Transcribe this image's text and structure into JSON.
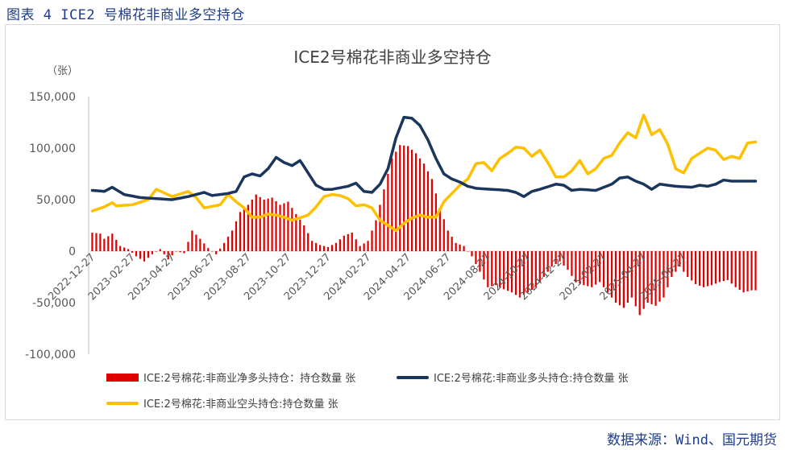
{
  "caption": "图表 4 ICE2 号棉花非商业多空持仓",
  "source": "数据来源：Wind、国元期货",
  "chart_data": {
    "type": "bar+line",
    "title": "ICE2号棉花非商业多空持仓",
    "unit_label": "（张）",
    "y_ticks": [
      "150,000",
      "100,000",
      "50,000",
      "0",
      "-50,000",
      "-100,000"
    ],
    "y_tick_values": [
      150000,
      100000,
      50000,
      0,
      -50000,
      -100000
    ],
    "ylim": [
      -100000,
      150000
    ],
    "x_tick_labels": [
      "2022-12-27",
      "2023-02-27",
      "2023-04-27",
      "2023-06-27",
      "2023-08-27",
      "2023-10-27",
      "2023-12-27",
      "2024-02-27",
      "2024-04-27",
      "2024-06-27",
      "2024-08-27",
      "2024-10-27",
      "2024-12-27",
      "2025-02-27",
      "2025-04-27",
      "2025-06-27"
    ],
    "colors": {
      "net": "#e00000",
      "long": "#1b365d",
      "short": "#ffc000"
    },
    "legend": [
      {
        "key": "net",
        "label": "ICE:2号棉花:非商业净多头持仓：持仓数量 张"
      },
      {
        "key": "long",
        "label": "ICE:2号棉花:非商业多头持仓:持仓数量 张"
      },
      {
        "key": "short",
        "label": "ICE:2号棉花:非商业空头持仓:持仓数量 张"
      }
    ],
    "long_anchors": [
      [
        0,
        59000
      ],
      [
        3,
        58000
      ],
      [
        5,
        62000
      ],
      [
        8,
        55000
      ],
      [
        12,
        52000
      ],
      [
        16,
        51000
      ],
      [
        20,
        50000
      ],
      [
        24,
        53000
      ],
      [
        28,
        57000
      ],
      [
        30,
        54000
      ],
      [
        34,
        56000
      ],
      [
        36,
        58000
      ],
      [
        38,
        72000
      ],
      [
        40,
        75000
      ],
      [
        42,
        73000
      ],
      [
        44,
        80000
      ],
      [
        46,
        91000
      ],
      [
        48,
        86000
      ],
      [
        50,
        83000
      ],
      [
        52,
        88000
      ],
      [
        54,
        76000
      ],
      [
        56,
        64000
      ],
      [
        58,
        60000
      ],
      [
        60,
        60000
      ],
      [
        64,
        63000
      ],
      [
        66,
        66000
      ],
      [
        68,
        58000
      ],
      [
        70,
        57000
      ],
      [
        72,
        65000
      ],
      [
        74,
        80000
      ],
      [
        76,
        110000
      ],
      [
        78,
        130000
      ],
      [
        80,
        129000
      ],
      [
        82,
        122000
      ],
      [
        84,
        108000
      ],
      [
        86,
        90000
      ],
      [
        88,
        75000
      ],
      [
        90,
        70000
      ],
      [
        92,
        67000
      ],
      [
        94,
        63000
      ],
      [
        96,
        61000
      ],
      [
        100,
        60000
      ],
      [
        104,
        59000
      ],
      [
        106,
        57000
      ],
      [
        108,
        53000
      ],
      [
        110,
        58000
      ],
      [
        112,
        60000
      ],
      [
        116,
        65000
      ],
      [
        118,
        64000
      ],
      [
        120,
        59000
      ],
      [
        122,
        60000
      ],
      [
        126,
        59000
      ],
      [
        130,
        65000
      ],
      [
        132,
        71000
      ],
      [
        134,
        72000
      ],
      [
        136,
        68000
      ],
      [
        138,
        65000
      ],
      [
        140,
        60000
      ],
      [
        142,
        65000
      ],
      [
        144,
        64000
      ],
      [
        146,
        63000
      ],
      [
        150,
        62000
      ],
      [
        152,
        64000
      ],
      [
        154,
        63000
      ],
      [
        156,
        65000
      ],
      [
        158,
        69000
      ],
      [
        160,
        68000
      ]
    ],
    "short_anchors": [
      [
        0,
        39000
      ],
      [
        3,
        43000
      ],
      [
        5,
        47000
      ],
      [
        6,
        44000
      ],
      [
        10,
        45000
      ],
      [
        14,
        50000
      ],
      [
        16,
        60000
      ],
      [
        20,
        53000
      ],
      [
        24,
        58000
      ],
      [
        26,
        52000
      ],
      [
        28,
        42000
      ],
      [
        32,
        45000
      ],
      [
        34,
        55000
      ],
      [
        36,
        48000
      ],
      [
        38,
        42000
      ],
      [
        40,
        33000
      ],
      [
        42,
        33000
      ],
      [
        44,
        36000
      ],
      [
        46,
        35000
      ],
      [
        48,
        33000
      ],
      [
        50,
        30000
      ],
      [
        54,
        35000
      ],
      [
        56,
        43000
      ],
      [
        58,
        53000
      ],
      [
        60,
        55000
      ],
      [
        62,
        54000
      ],
      [
        64,
        51000
      ],
      [
        66,
        44000
      ],
      [
        68,
        45000
      ],
      [
        70,
        42000
      ],
      [
        72,
        30000
      ],
      [
        74,
        25000
      ],
      [
        76,
        20000
      ],
      [
        78,
        27000
      ],
      [
        80,
        32000
      ],
      [
        82,
        35000
      ],
      [
        84,
        33000
      ],
      [
        86,
        33000
      ],
      [
        88,
        48000
      ],
      [
        90,
        56000
      ],
      [
        92,
        64000
      ],
      [
        94,
        70000
      ],
      [
        96,
        85000
      ],
      [
        98,
        86000
      ],
      [
        100,
        78000
      ],
      [
        102,
        90000
      ],
      [
        104,
        95000
      ],
      [
        106,
        101000
      ],
      [
        108,
        100000
      ],
      [
        110,
        92000
      ],
      [
        112,
        98000
      ],
      [
        114,
        86000
      ],
      [
        116,
        72000
      ],
      [
        118,
        72000
      ],
      [
        120,
        78000
      ],
      [
        122,
        88000
      ],
      [
        124,
        75000
      ],
      [
        126,
        80000
      ],
      [
        128,
        90000
      ],
      [
        130,
        93000
      ],
      [
        132,
        105000
      ],
      [
        134,
        115000
      ],
      [
        136,
        110000
      ],
      [
        138,
        132000
      ],
      [
        140,
        113000
      ],
      [
        142,
        118000
      ],
      [
        144,
        104000
      ],
      [
        146,
        80000
      ],
      [
        148,
        76000
      ],
      [
        150,
        90000
      ],
      [
        152,
        95000
      ],
      [
        154,
        100000
      ],
      [
        156,
        98000
      ],
      [
        158,
        89000
      ],
      [
        160,
        92000
      ],
      [
        162,
        90000
      ],
      [
        164,
        105000
      ],
      [
        166,
        106000
      ]
    ],
    "net_anchors": [
      [
        0,
        18000
      ],
      [
        2,
        17000
      ],
      [
        3,
        12000
      ],
      [
        5,
        17000
      ],
      [
        7,
        5000
      ],
      [
        9,
        2000
      ],
      [
        11,
        -5000
      ],
      [
        13,
        -10000
      ],
      [
        15,
        -3000
      ],
      [
        17,
        2000
      ],
      [
        19,
        -8000
      ],
      [
        21,
        0
      ],
      [
        23,
        -2000
      ],
      [
        25,
        20000
      ],
      [
        27,
        12000
      ],
      [
        29,
        3000
      ],
      [
        31,
        -3000
      ],
      [
        33,
        8000
      ],
      [
        35,
        20000
      ],
      [
        37,
        38000
      ],
      [
        39,
        45000
      ],
      [
        41,
        55000
      ],
      [
        43,
        50000
      ],
      [
        45,
        52000
      ],
      [
        47,
        45000
      ],
      [
        49,
        48000
      ],
      [
        51,
        36000
      ],
      [
        53,
        25000
      ],
      [
        55,
        10000
      ],
      [
        57,
        6000
      ],
      [
        59,
        4000
      ],
      [
        61,
        8000
      ],
      [
        63,
        15000
      ],
      [
        65,
        18000
      ],
      [
        67,
        5000
      ],
      [
        69,
        10000
      ],
      [
        71,
        30000
      ],
      [
        73,
        60000
      ],
      [
        75,
        90000
      ],
      [
        77,
        103000
      ],
      [
        79,
        102000
      ],
      [
        81,
        95000
      ],
      [
        83,
        85000
      ],
      [
        85,
        70000
      ],
      [
        87,
        42000
      ],
      [
        89,
        20000
      ],
      [
        91,
        8000
      ],
      [
        93,
        5000
      ],
      [
        95,
        -5000
      ],
      [
        97,
        -20000
      ],
      [
        99,
        -35000
      ],
      [
        101,
        -33000
      ],
      [
        103,
        -37000
      ],
      [
        105,
        -40000
      ],
      [
        107,
        -45000
      ],
      [
        109,
        -40000
      ],
      [
        111,
        -35000
      ],
      [
        113,
        -25000
      ],
      [
        115,
        -15000
      ],
      [
        117,
        -10000
      ],
      [
        119,
        -18000
      ],
      [
        121,
        -30000
      ],
      [
        123,
        -33000
      ],
      [
        125,
        -35000
      ],
      [
        127,
        -30000
      ],
      [
        129,
        -40000
      ],
      [
        131,
        -50000
      ],
      [
        133,
        -55000
      ],
      [
        135,
        -45000
      ],
      [
        137,
        -62000
      ],
      [
        139,
        -50000
      ],
      [
        141,
        -53000
      ],
      [
        143,
        -45000
      ],
      [
        145,
        -25000
      ],
      [
        147,
        -15000
      ],
      [
        149,
        -25000
      ],
      [
        151,
        -32000
      ],
      [
        153,
        -35000
      ],
      [
        155,
        -33000
      ],
      [
        157,
        -30000
      ],
      [
        159,
        -28000
      ],
      [
        161,
        -35000
      ],
      [
        163,
        -40000
      ],
      [
        165,
        -38000
      ]
    ],
    "n_weeks": 167
  }
}
